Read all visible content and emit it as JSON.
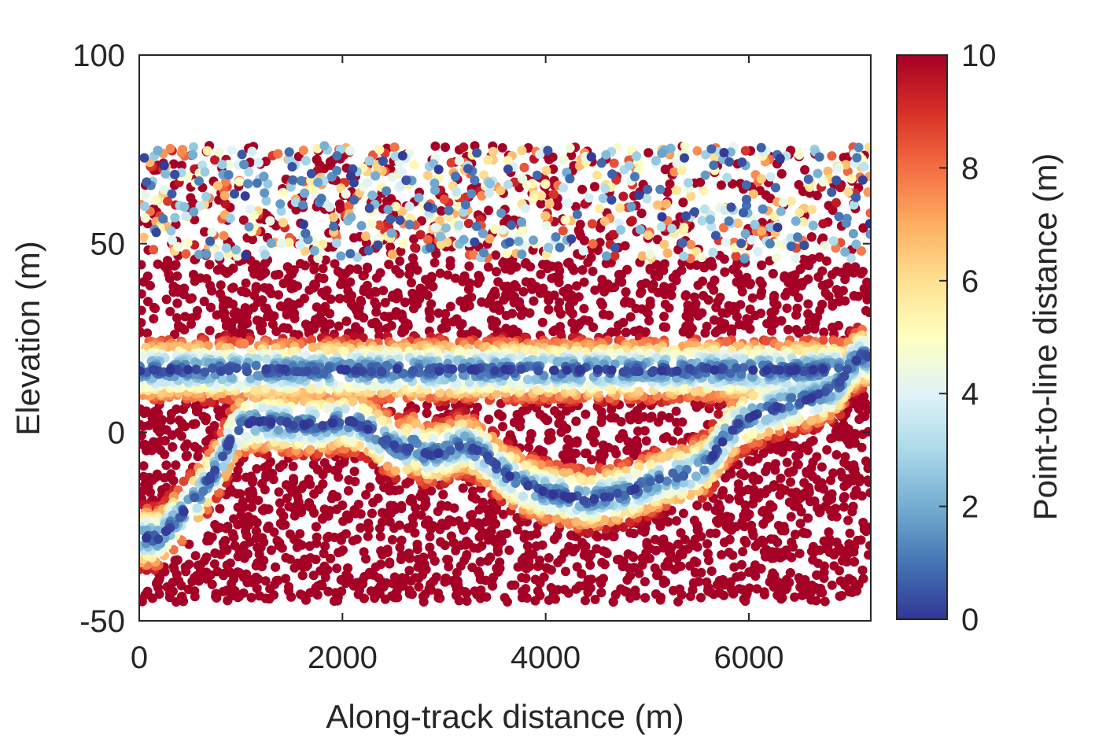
{
  "chart_data": {
    "type": "scatter",
    "title": "",
    "xlabel": "Along-track distance (m)",
    "ylabel": "Elevation (m)",
    "xlim": [
      0,
      7200
    ],
    "ylim": [
      -50,
      100
    ],
    "xticks": [
      0,
      2000,
      4000,
      6000
    ],
    "yticks": [
      -50,
      0,
      50,
      100
    ],
    "xtick_labels": [
      "0",
      "2000",
      "4000",
      "6000"
    ],
    "ytick_labels": [
      "-50",
      "0",
      "50",
      "100"
    ],
    "grid": false,
    "colorbar": {
      "label": "Point-to-line distance (m)",
      "range": [
        0,
        10
      ],
      "ticks": [
        0,
        2,
        4,
        6,
        8,
        10
      ],
      "tick_labels": [
        "0",
        "2",
        "4",
        "6",
        "8",
        "10"
      ],
      "colormap": "RdYlBu-reversed",
      "colors": [
        "#313695",
        "#4575b4",
        "#74add1",
        "#abd9e9",
        "#e0f3f8",
        "#ffffbf",
        "#fee090",
        "#fdae61",
        "#f46d43",
        "#d73027",
        "#a50026"
      ]
    },
    "x_range_of_points": [
      0,
      7200
    ],
    "y_range_of_points": [
      -45,
      76
    ],
    "surface_line_water": {
      "x": [
        0,
        6900
      ],
      "y": [
        16.5,
        16.5
      ]
    },
    "surface_line_ground": {
      "x": [
        200,
        400,
        600,
        800,
        900,
        1000,
        1200,
        1500,
        1800,
        2000,
        2200,
        2400,
        2600,
        2700,
        2800,
        3000,
        3200,
        3400,
        3600,
        3800,
        4000,
        4200,
        4400,
        4600,
        4800,
        5000,
        5200,
        5400,
        5600,
        5700,
        5800,
        6000,
        6200,
        6400,
        6600,
        6800,
        6900,
        7000,
        7100
      ],
      "y": [
        -28,
        -22,
        -16,
        -8,
        -2,
        2,
        3,
        2,
        2,
        3,
        2,
        -2,
        -5,
        -3,
        -6,
        -5,
        -3,
        -6,
        -11,
        -14,
        -16,
        -17,
        -18,
        -17,
        -16,
        -14,
        -12,
        -11,
        -8,
        -4,
        0,
        4,
        6,
        8,
        9,
        11,
        13,
        18,
        20
      ]
    }
  }
}
